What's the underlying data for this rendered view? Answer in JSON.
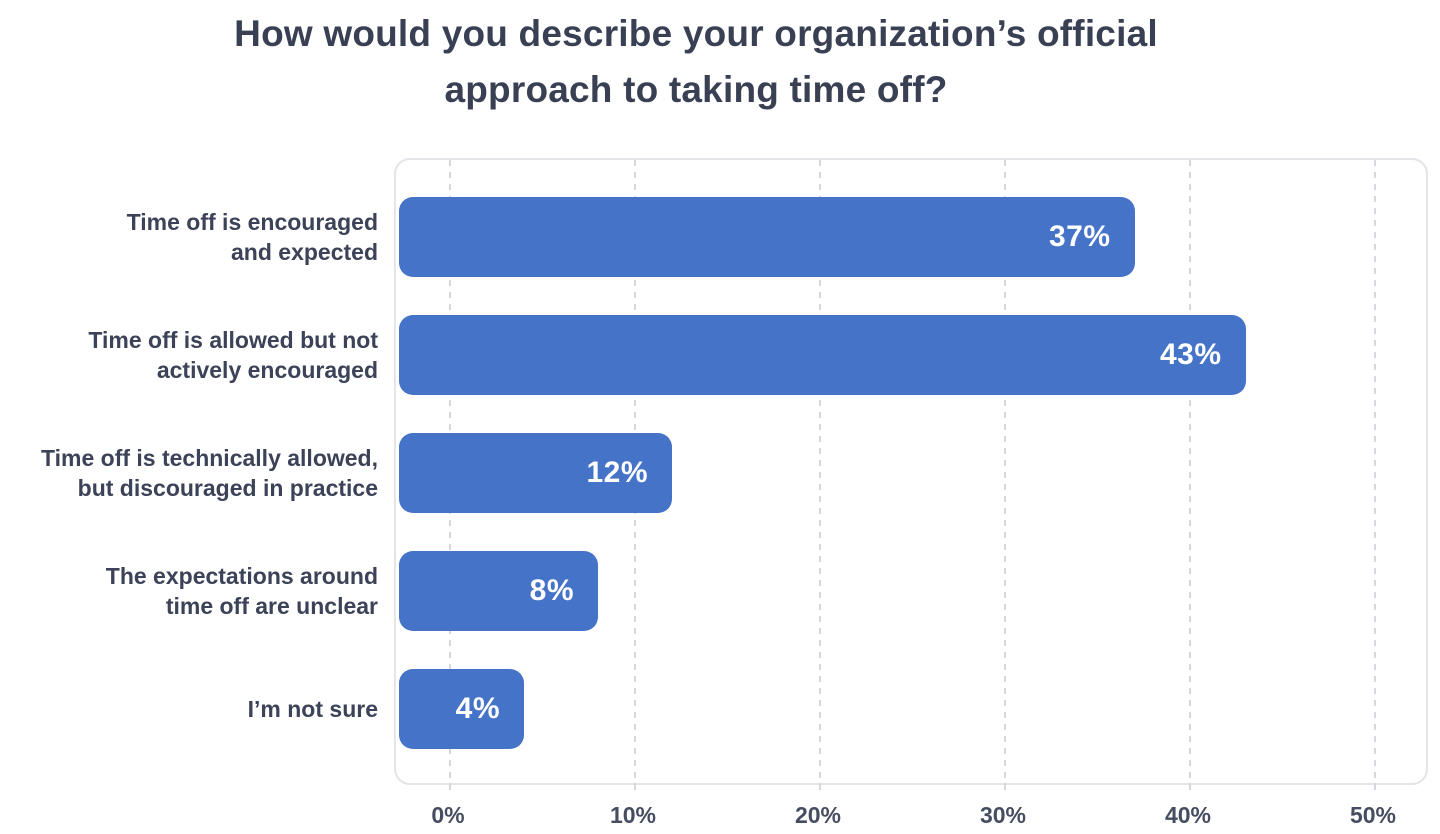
{
  "colors": {
    "background": "#ffffff",
    "title": "#3a4054",
    "category_label": "#3c4257",
    "axis_label": "#474d60",
    "bar": "#4473c8",
    "value_label": "#ffffff",
    "gridline": "#d6d6dc",
    "plot_border": "#e4e4e9"
  },
  "chart_data": {
    "type": "bar",
    "orientation": "horizontal",
    "title": "How would you describe your organization’s official approach to taking time off?",
    "title_lines": [
      "How would you describe your organization’s official",
      "approach to taking time off?"
    ],
    "categories": [
      "Time off is encouraged\nand expected",
      "Time off is allowed but not\nactively encouraged",
      "Time off is technically allowed,\nbut discouraged in practice",
      "The expectations around\ntime off are unclear",
      "I’m not sure"
    ],
    "values": [
      37,
      43,
      12,
      8,
      4
    ],
    "value_labels": [
      "37%",
      "43%",
      "12%",
      "8%",
      "4%"
    ],
    "x_tick_labels": [
      "0%",
      "10%",
      "20%",
      "30%",
      "40%",
      "50%"
    ],
    "x_tick_values": [
      0,
      10,
      20,
      30,
      40,
      50
    ],
    "xlim": [
      0,
      50
    ],
    "xlabel": "",
    "ylabel": "",
    "grid": "vertical-dashed",
    "legend": "none",
    "value_labels_position": "inside-end"
  }
}
